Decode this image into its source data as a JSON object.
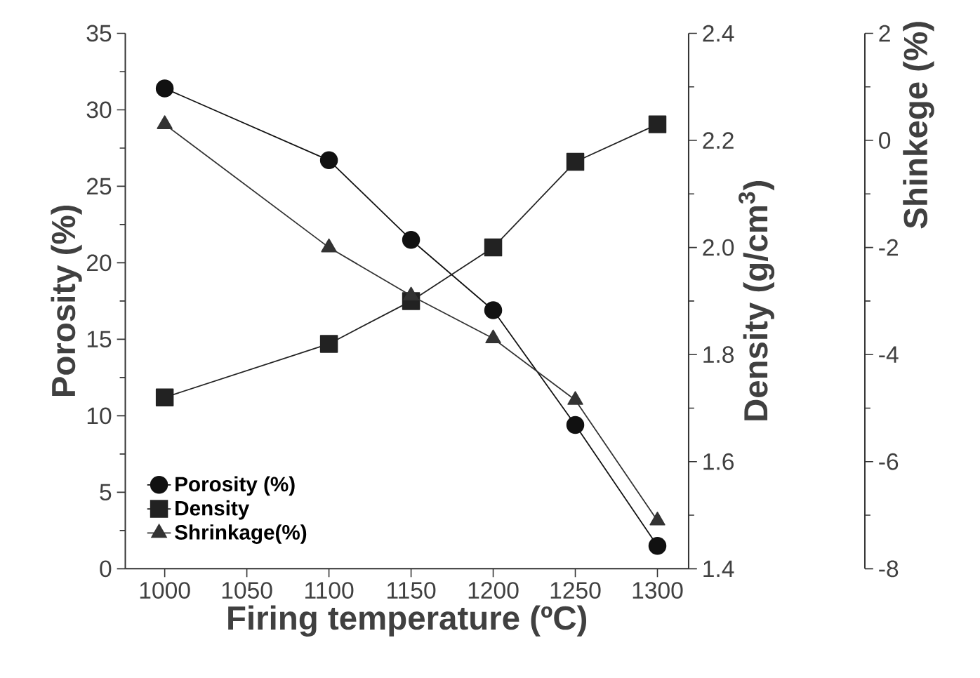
{
  "chart_data": {
    "type": "line",
    "xlabel": "Firing temperature (ºC)",
    "ylabel": "Porosity (%)",
    "y2label": "Density (g/cm$^{3}$)",
    "y3label": "Shinkege (%)",
    "x": [
      1000,
      1100,
      1150,
      1200,
      1250,
      1300
    ],
    "xlim": [
      976,
      1319
    ],
    "xticks": [
      1000,
      1050,
      1100,
      1150,
      1200,
      1250,
      1300
    ],
    "ylim": [
      0,
      35
    ],
    "yticks": [
      0,
      5,
      10,
      15,
      20,
      25,
      30,
      35
    ],
    "y2lim": [
      1.4,
      2.4
    ],
    "y2ticks": [
      1.4,
      1.6,
      1.8,
      {
        "value": 2.0,
        "label": "2.0"
      },
      2.2,
      2.4
    ],
    "y3lim": [
      -8,
      2
    ],
    "y3ticks": [
      -8,
      -6,
      -4,
      -2,
      0,
      2
    ],
    "legend": "bottom left",
    "grid": false,
    "line_style": "solid",
    "series": [
      {
        "name": "Porosity (%)",
        "color": "#111111",
        "marker": "circle",
        "values": [
          31.4,
          26.7,
          21.5,
          16.9,
          9.4,
          1.5
        ]
      },
      {
        "name": "Density",
        "color": "#222222",
        "marker": "square",
        "axis": "y2",
        "values": [
          1.72,
          1.82,
          1.9,
          2.0,
          2.16,
          2.23
        ]
      },
      {
        "name": "Shrinkage(%)",
        "color": "#333333",
        "marker": "triangle",
        "axis": "y3",
        "values": [
          0.3,
          -2.0,
          -2.9,
          -3.7,
          -4.85,
          -7.1
        ]
      }
    ]
  }
}
